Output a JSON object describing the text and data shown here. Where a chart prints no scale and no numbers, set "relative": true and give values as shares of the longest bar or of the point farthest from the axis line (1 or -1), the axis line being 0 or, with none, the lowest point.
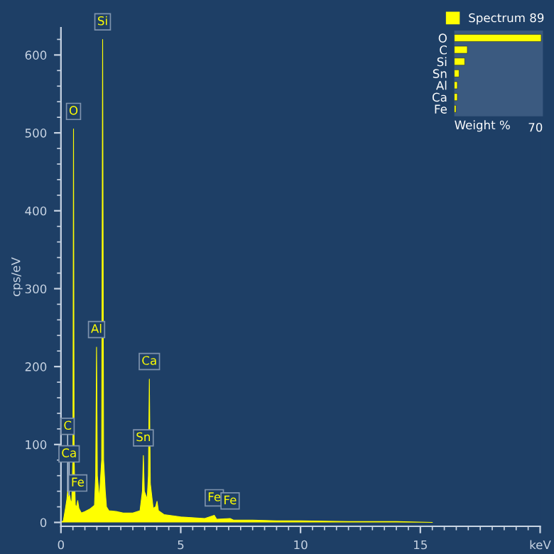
{
  "chart_data": [
    {
      "type": "area",
      "ylabel": "cps/eV",
      "xlim": [
        0,
        20
      ],
      "ylim": [
        -5,
        635
      ],
      "xticks": [
        0,
        5,
        10,
        15,
        {
          "value": 20,
          "label": "keV"
        }
      ],
      "yticks": [
        0,
        100,
        200,
        300,
        400,
        500,
        600
      ],
      "grid": false,
      "legend": "top right",
      "series": [
        {
          "name": "Spectrum 89",
          "color": "#ffff00",
          "x": [
            0.0,
            0.1,
            0.2,
            0.25,
            0.28,
            0.32,
            0.36,
            0.4,
            0.45,
            0.5,
            0.525,
            0.55,
            0.6,
            0.65,
            0.7,
            0.75,
            0.85,
            1.0,
            1.2,
            1.4,
            1.45,
            1.486,
            1.52,
            1.6,
            1.7,
            1.74,
            1.78,
            1.85,
            1.9,
            2.0,
            2.3,
            2.6,
            3.0,
            3.3,
            3.4,
            3.44,
            3.48,
            3.6,
            3.65,
            3.69,
            3.73,
            3.85,
            3.95,
            4.01,
            4.07,
            4.3,
            5.0,
            6.0,
            6.4,
            6.5,
            7.06,
            7.2,
            8.0,
            9.0,
            10.0,
            12.0,
            14.0,
            15.5
          ],
          "values": [
            0,
            2,
            20,
            30,
            40,
            30,
            35,
            28,
            25,
            80,
            505,
            80,
            22,
            20,
            28,
            18,
            12,
            14,
            17,
            22,
            60,
            225,
            60,
            30,
            80,
            620,
            80,
            40,
            20,
            15,
            14,
            12,
            12,
            15,
            40,
            86,
            40,
            30,
            60,
            184,
            50,
            18,
            20,
            27,
            15,
            10,
            7,
            5,
            9,
            4,
            5,
            3,
            3,
            2,
            2,
            1,
            1,
            0
          ]
        }
      ],
      "annotations": [
        {
          "text": "C",
          "x": 0.28,
          "y": 40
        },
        {
          "text": "Ca",
          "x": 0.34,
          "y": 35
        },
        {
          "text": "Fe",
          "x": 0.7,
          "y": 28
        },
        {
          "text": "O",
          "x": 0.525,
          "y": 505
        },
        {
          "text": "Al",
          "x": 1.486,
          "y": 225
        },
        {
          "text": "Si",
          "x": 1.74,
          "y": 620
        },
        {
          "text": "Sn",
          "x": 3.44,
          "y": 86
        },
        {
          "text": "Ca",
          "x": 3.69,
          "y": 184
        },
        {
          "text": "Fe",
          "x": 6.4,
          "y": 9
        },
        {
          "text": "Fe",
          "x": 7.06,
          "y": 5
        }
      ]
    },
    {
      "type": "bar",
      "orientation": "horizontal",
      "relative": true,
      "xlabel": "Weight %",
      "annotations": [
        "70"
      ],
      "categories": [
        "O",
        "C",
        "Si",
        "Sn",
        "Al",
        "Ca",
        "Fe"
      ],
      "values": [
        1,
        0.15,
        0.12,
        0.055,
        0.035,
        0.035,
        0.02
      ],
      "color": "#ffff00"
    }
  ]
}
